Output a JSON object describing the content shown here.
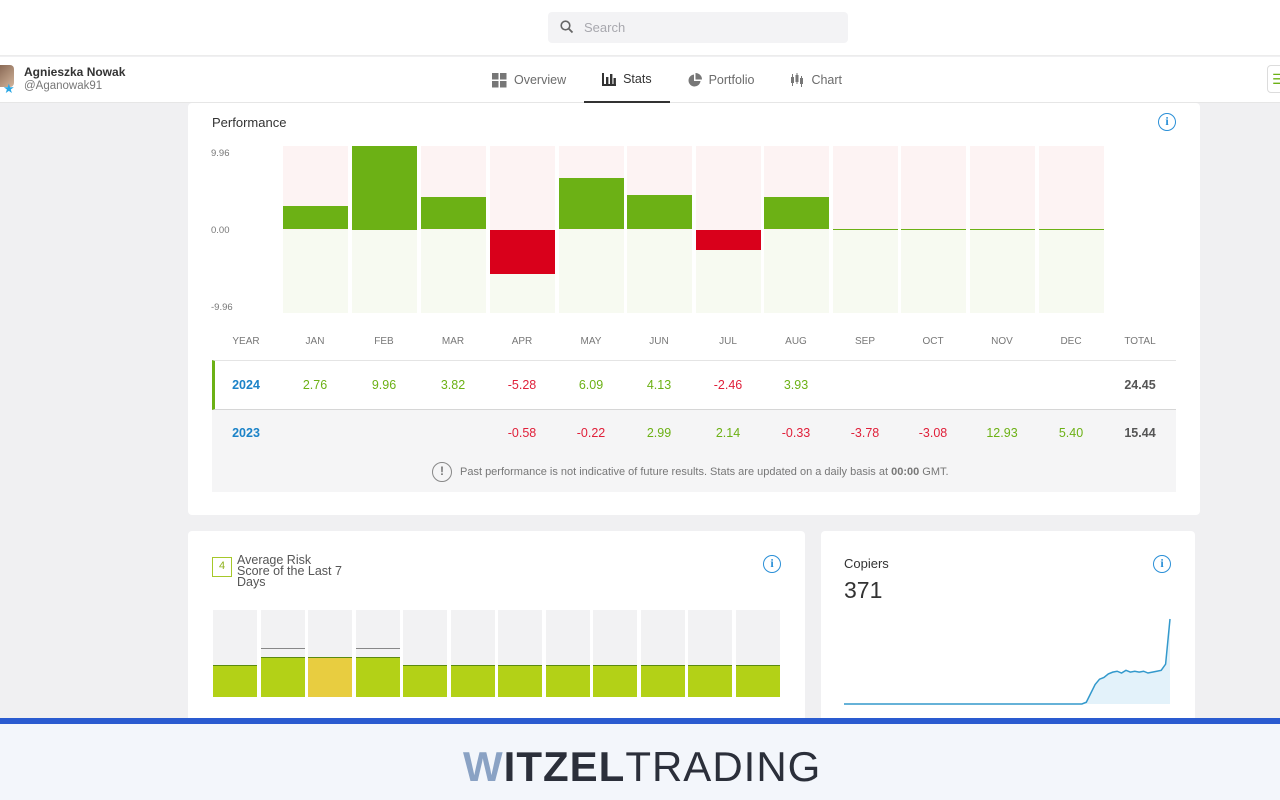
{
  "search": {
    "placeholder": "Search"
  },
  "user": {
    "name": "Agnieszka Nowak",
    "handle": "@Aganowak91"
  },
  "tabs": [
    {
      "label": "Overview",
      "icon": "grid-icon"
    },
    {
      "label": "Stats",
      "icon": "bar-chart-icon"
    },
    {
      "label": "Portfolio",
      "icon": "pie-chart-icon"
    },
    {
      "label": "Chart",
      "icon": "candlestick-icon"
    }
  ],
  "performance": {
    "title": "Performance",
    "y_labels": {
      "max": "9.96",
      "zero": "0.00",
      "min": "-9.96"
    },
    "headers": [
      "YEAR",
      "JAN",
      "FEB",
      "MAR",
      "APR",
      "MAY",
      "JUN",
      "JUL",
      "AUG",
      "SEP",
      "OCT",
      "NOV",
      "DEC",
      "TOTAL"
    ],
    "rows": [
      {
        "year": "2024",
        "values": [
          "2.76",
          "9.96",
          "3.82",
          "-5.28",
          "6.09",
          "4.13",
          "-2.46",
          "3.93",
          "",
          "",
          "",
          ""
        ],
        "total": "24.45"
      },
      {
        "year": "2023",
        "values": [
          "",
          "",
          "",
          "-0.58",
          "-0.22",
          "2.99",
          "2.14",
          "-0.33",
          "-3.78",
          "-3.08",
          "12.93",
          "5.40"
        ],
        "total": "15.44"
      }
    ],
    "disclaimer_pre": "Past performance is not indicative of future results. Stats are updated on a daily basis at",
    "disclaimer_time": "00:00",
    "disclaimer_post": "GMT."
  },
  "chart_data": {
    "type": "bar",
    "categories": [
      "JAN",
      "FEB",
      "MAR",
      "APR",
      "MAY",
      "JUN",
      "JUL",
      "AUG",
      "SEP",
      "OCT",
      "NOV",
      "DEC"
    ],
    "values": [
      2.76,
      9.96,
      3.82,
      -5.28,
      6.09,
      4.13,
      -2.46,
      3.93,
      0,
      0,
      0,
      0
    ],
    "ylim": [
      -9.96,
      9.96
    ],
    "colors": {
      "positive": "#6cb115",
      "negative": "#d9001b"
    }
  },
  "risk": {
    "score": "4",
    "title": "Average Risk Score of the Last 7 Days",
    "levels": [
      4,
      5,
      5,
      5,
      4,
      4,
      4,
      4,
      4,
      4,
      4,
      4
    ],
    "highlight_index": 2,
    "colors": {
      "normal": "#b3d117",
      "highlight": "#e8cd40"
    }
  },
  "copiers": {
    "title": "Copiers",
    "count": "371",
    "series": [
      0,
      0,
      0,
      0,
      0,
      0,
      0,
      0,
      0,
      0,
      0,
      0,
      0,
      0,
      0,
      0,
      0,
      0,
      0,
      0,
      0,
      0,
      0,
      0,
      0,
      0,
      0,
      0,
      0,
      0,
      0,
      0,
      0,
      0,
      0,
      0,
      0,
      0,
      0,
      0,
      0,
      0,
      0,
      0,
      0,
      0,
      0,
      0,
      0,
      0,
      0,
      0,
      0,
      0,
      0,
      2,
      12,
      22,
      28,
      30,
      34,
      36,
      37,
      35,
      38,
      36,
      37,
      36,
      37,
      35,
      36,
      37,
      38,
      45,
      96
    ],
    "color": "#3399cc"
  },
  "footer": {
    "brand_w": "W",
    "brand_bold": "ITZEL",
    "brand_light": "TRADING"
  }
}
